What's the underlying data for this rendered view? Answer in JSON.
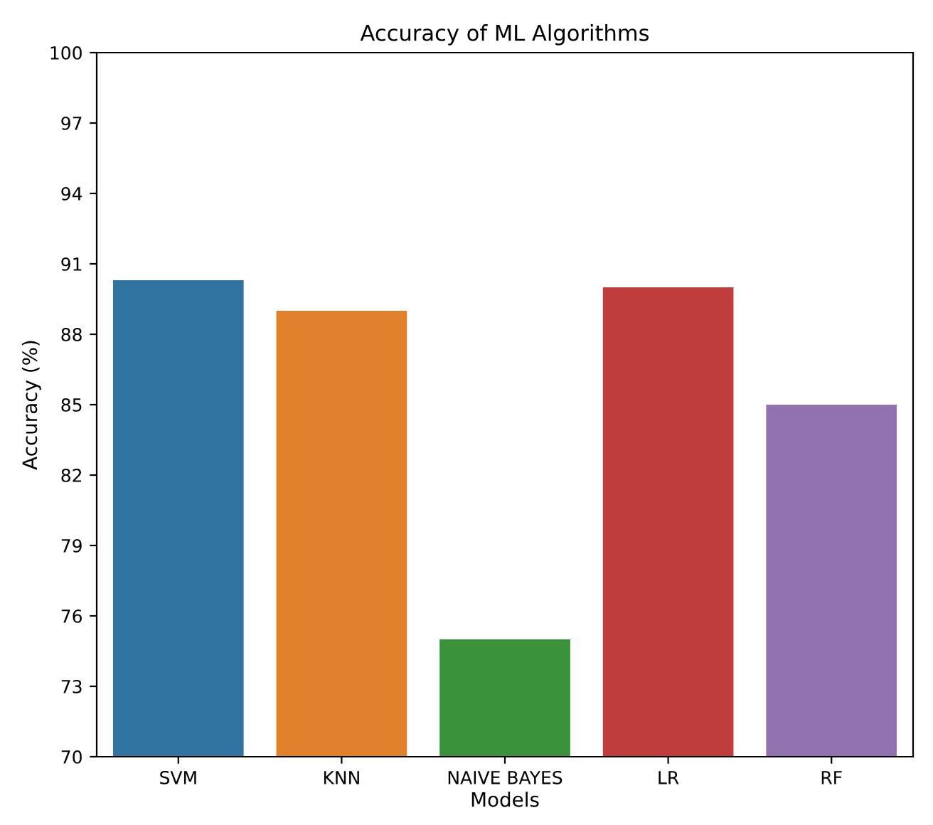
{
  "chart_data": {
    "type": "bar",
    "title": "Accuracy of ML Algorithms",
    "xlabel": "Models",
    "ylabel": "Accuracy (%)",
    "categories": [
      "SVM",
      "KNN",
      "NAIVE BAYES",
      "LR",
      "RF"
    ],
    "values": [
      90.3,
      89.0,
      75.0,
      90.0,
      85.0
    ],
    "colors": [
      "#3274a1",
      "#e1812c",
      "#3a923a",
      "#c03d3e",
      "#9372b2"
    ],
    "ylim": [
      70,
      100
    ],
    "yticks": [
      70,
      73,
      76,
      79,
      82,
      85,
      88,
      91,
      94,
      97,
      100
    ],
    "grid": false
  }
}
